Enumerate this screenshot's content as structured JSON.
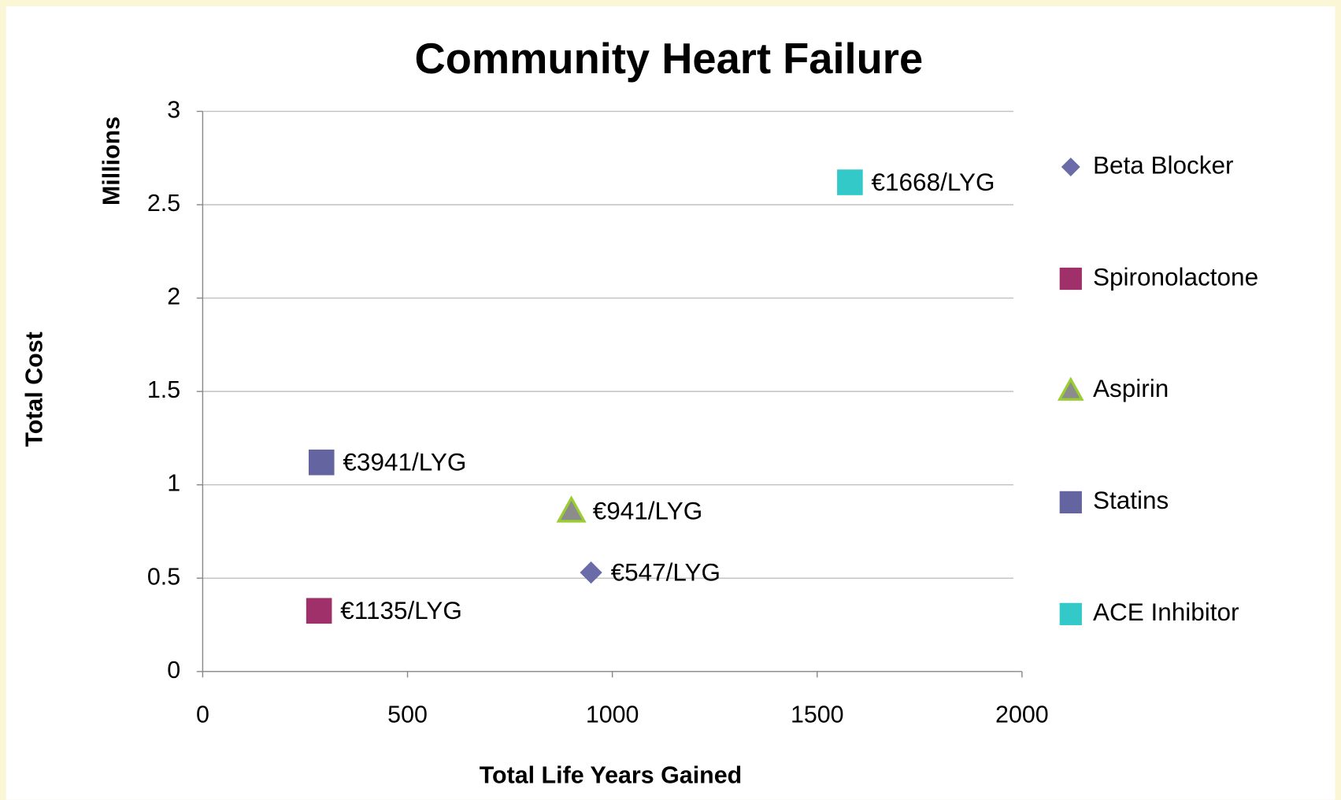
{
  "chart_data": {
    "type": "scatter",
    "title": "Community Heart Failure",
    "x_label": "Total Life Years Gained",
    "y_label": "Total Cost",
    "y_unit_label": "Millions",
    "xlim": [
      0,
      2000
    ],
    "xticks": [
      0,
      500,
      1000,
      1500,
      2000
    ],
    "ylim": [
      0,
      3
    ],
    "yticks": [
      0,
      0.5,
      1,
      1.5,
      2,
      2.5,
      3
    ],
    "grid": true,
    "legend": "right",
    "series": [
      {
        "name": "Beta Blocker",
        "color": "#6b6ba8",
        "marker": "diamond",
        "x": [
          948
        ],
        "values": [
          0.53
        ],
        "labels": [
          "€547/LYG"
        ]
      },
      {
        "name": "Spironolactone",
        "color": "#a0306a",
        "marker": "square",
        "x": [
          284
        ],
        "values": [
          0.325
        ],
        "labels": [
          "€1135/LYG"
        ]
      },
      {
        "name": "Aspirin",
        "color": "#8c8c8c",
        "edge_color": "#9acd32",
        "marker": "triangle",
        "x": [
          900
        ],
        "values": [
          0.86
        ],
        "labels": [
          "€941/LYG"
        ]
      },
      {
        "name": "Statins",
        "color": "#6464a0",
        "marker": "square",
        "x": [
          290
        ],
        "values": [
          1.12
        ],
        "labels": [
          "€3941/LYG"
        ]
      },
      {
        "name": "ACE Inhibitor",
        "color": "#33c9c9",
        "marker": "square",
        "x": [
          1580
        ],
        "values": [
          2.62
        ],
        "labels": [
          "€1668/LYG"
        ]
      }
    ]
  }
}
